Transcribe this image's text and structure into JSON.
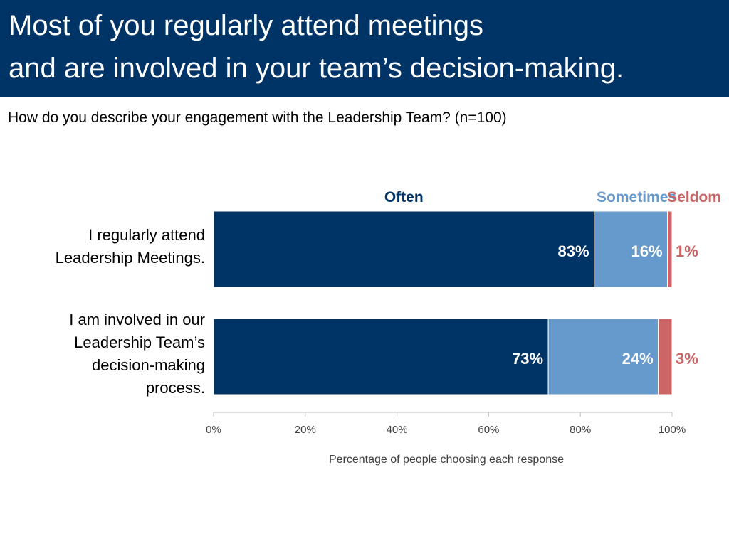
{
  "slide": {
    "title_line1": "Most of you regularly attend meetings",
    "title_line2": "and are involved in your team’s decision-making.",
    "question": "How do you describe your engagement with the Leadership Team? (n=100)"
  },
  "colors": {
    "header_bg": "#003366",
    "often": "#003366",
    "sometimes": "#6699CC",
    "seldom": "#CC6666"
  },
  "chart_data": {
    "type": "bar",
    "orientation": "horizontal",
    "stacked": true,
    "categories": [
      "I regularly attend Leadership Meetings.",
      "I am involved in our Leadership Team’s decision-making process."
    ],
    "series": [
      {
        "name": "Often",
        "values": [
          83,
          73
        ],
        "labels": [
          "83%",
          "73%"
        ]
      },
      {
        "name": "Sometimes",
        "values": [
          16,
          24
        ],
        "labels": [
          "16%",
          "24%"
        ]
      },
      {
        "name": "Seldom",
        "values": [
          1,
          3
        ],
        "labels": [
          "1%",
          "3%"
        ]
      }
    ],
    "xlabel": "Percentage of people choosing each response",
    "xlim": [
      0,
      100
    ],
    "xticks": [
      "0%",
      "20%",
      "40%",
      "60%",
      "80%",
      "100%"
    ],
    "grid": false,
    "legend": "top, above bars"
  }
}
